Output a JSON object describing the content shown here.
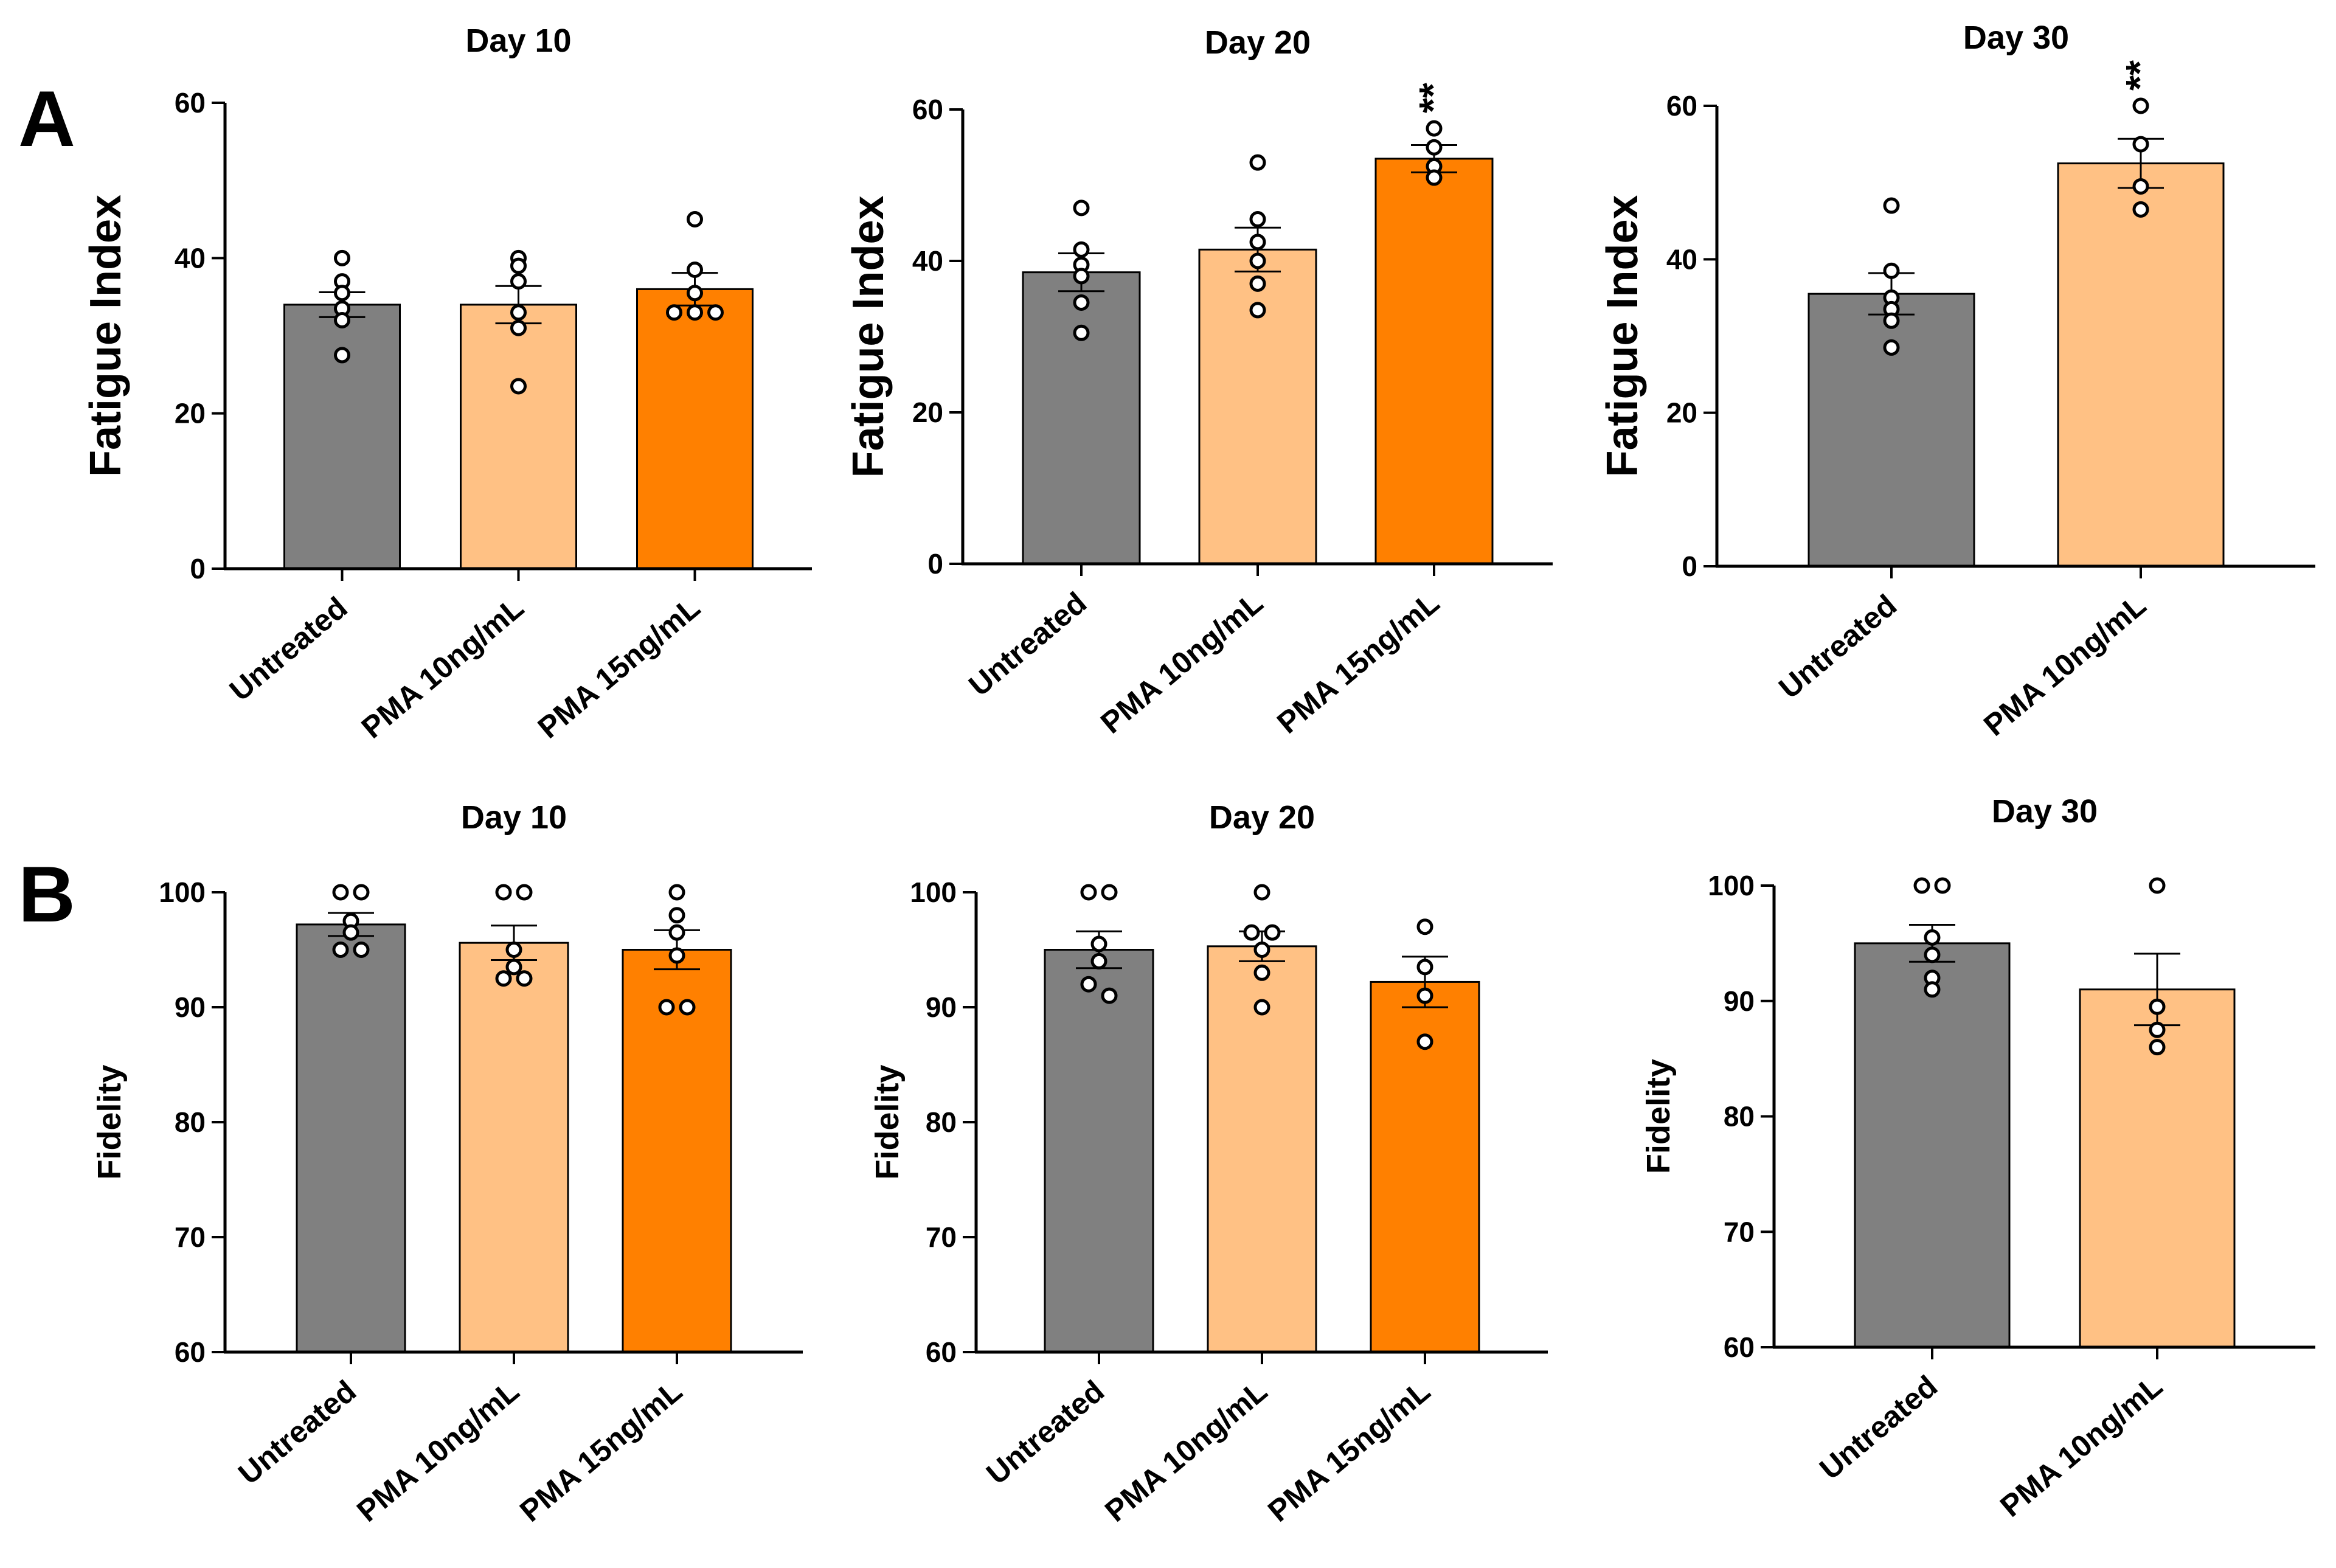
{
  "panels": [
    "A",
    "B"
  ],
  "colors": {
    "untreated": "#808080",
    "pma10": "#FFC184",
    "pma15": "#FF8000"
  },
  "chart_data": [
    {
      "panel": "A",
      "type": "bar",
      "title": "Day 10",
      "ylabel": "Fatigue Index",
      "xlabel": "",
      "ylim": [
        0,
        60
      ],
      "yticks": [
        0,
        20,
        40,
        60
      ],
      "categories": [
        "Untreated",
        "PMA 10ng/mL",
        "PMA 15ng/mL"
      ],
      "values": [
        34,
        34,
        36
      ],
      "sem": [
        1.6,
        2.4,
        2.1
      ],
      "points": [
        [
          40,
          37,
          35.5,
          33.5,
          32,
          27.5
        ],
        [
          40,
          39,
          37,
          33,
          31,
          23.5
        ],
        [
          45,
          38.5,
          35.5,
          33,
          33,
          33
        ]
      ],
      "significance": [
        "",
        "",
        ""
      ],
      "colors": [
        "#808080",
        "#FFC184",
        "#FF8000"
      ]
    },
    {
      "panel": "A",
      "type": "bar",
      "title": "Day 20",
      "ylabel": "Fatigue Index",
      "xlabel": "",
      "ylim": [
        0,
        60
      ],
      "yticks": [
        0,
        20,
        40,
        60
      ],
      "categories": [
        "Untreated",
        "PMA 10ng/mL",
        "PMA 15ng/mL"
      ],
      "values": [
        38.5,
        41.5,
        53.5
      ],
      "sem": [
        2.5,
        2.9,
        1.8
      ],
      "points": [
        [
          47,
          41.5,
          39.5,
          38,
          34.5,
          30.5
        ],
        [
          53,
          45.5,
          42.5,
          40,
          37,
          33.5
        ],
        [
          57.5,
          55,
          52.5,
          51
        ]
      ],
      "significance": [
        "",
        "",
        "**"
      ],
      "colors": [
        "#808080",
        "#FFC184",
        "#FF8000"
      ]
    },
    {
      "panel": "A",
      "type": "bar",
      "title": "Day 30",
      "ylabel": "Fatigue Index",
      "xlabel": "",
      "ylim": [
        0,
        60
      ],
      "yticks": [
        0,
        20,
        40,
        60
      ],
      "categories": [
        "Untreated",
        "PMA 10ng/mL"
      ],
      "values": [
        35.5,
        52.5
      ],
      "sem": [
        2.7,
        3.2
      ],
      "points": [
        [
          47,
          38.5,
          35,
          33.5,
          32,
          28.5
        ],
        [
          60,
          55,
          49.5,
          46.5
        ]
      ],
      "significance": [
        "",
        "**"
      ],
      "colors": [
        "#808080",
        "#FFC184"
      ]
    },
    {
      "panel": "B",
      "type": "bar",
      "title": "Day 10",
      "ylabel": "Fidelity",
      "xlabel": "",
      "ylim": [
        60,
        100
      ],
      "yticks": [
        60,
        70,
        80,
        90,
        100
      ],
      "categories": [
        "Untreated",
        "PMA 10ng/mL",
        "PMA 15ng/mL"
      ],
      "values": [
        97.2,
        95.6,
        95
      ],
      "sem": [
        1.0,
        1.5,
        1.7
      ],
      "points": [
        [
          100,
          100,
          97.5,
          96.5,
          95,
          95
        ],
        [
          100,
          100,
          95,
          93.5,
          92.5,
          92.5
        ],
        [
          100,
          98,
          96.5,
          94.5,
          90,
          90
        ]
      ],
      "significance": [
        "",
        "",
        ""
      ],
      "colors": [
        "#808080",
        "#FFC184",
        "#FF8000"
      ]
    },
    {
      "panel": "B",
      "type": "bar",
      "title": "Day 20",
      "ylabel": "Fidelity",
      "xlabel": "",
      "ylim": [
        60,
        100
      ],
      "yticks": [
        60,
        70,
        80,
        90,
        100
      ],
      "categories": [
        "Untreated",
        "PMA 10ng/mL",
        "PMA 15ng/mL"
      ],
      "values": [
        95,
        95.3,
        92.2
      ],
      "sem": [
        1.6,
        1.3,
        2.2
      ],
      "points": [
        [
          100,
          100,
          95.5,
          94,
          92,
          91
        ],
        [
          100,
          96.5,
          96.5,
          95,
          93,
          90
        ],
        [
          97,
          93.5,
          91,
          87
        ]
      ],
      "significance": [
        "",
        "",
        ""
      ],
      "colors": [
        "#808080",
        "#FFC184",
        "#FF8000"
      ]
    },
    {
      "panel": "B",
      "type": "bar",
      "title": "Day 30",
      "ylabel": "Fidelity",
      "xlabel": "",
      "ylim": [
        60,
        100
      ],
      "yticks": [
        60,
        70,
        80,
        90,
        100
      ],
      "categories": [
        "Untreated",
        "PMA 10ng/mL"
      ],
      "values": [
        95,
        91
      ],
      "sem": [
        1.6,
        3.1
      ],
      "points": [
        [
          100,
          100,
          95.5,
          94,
          92,
          91
        ],
        [
          100,
          89.5,
          87.5,
          86
        ]
      ],
      "significance": [
        "",
        ""
      ],
      "colors": [
        "#808080",
        "#FFC184"
      ]
    }
  ]
}
